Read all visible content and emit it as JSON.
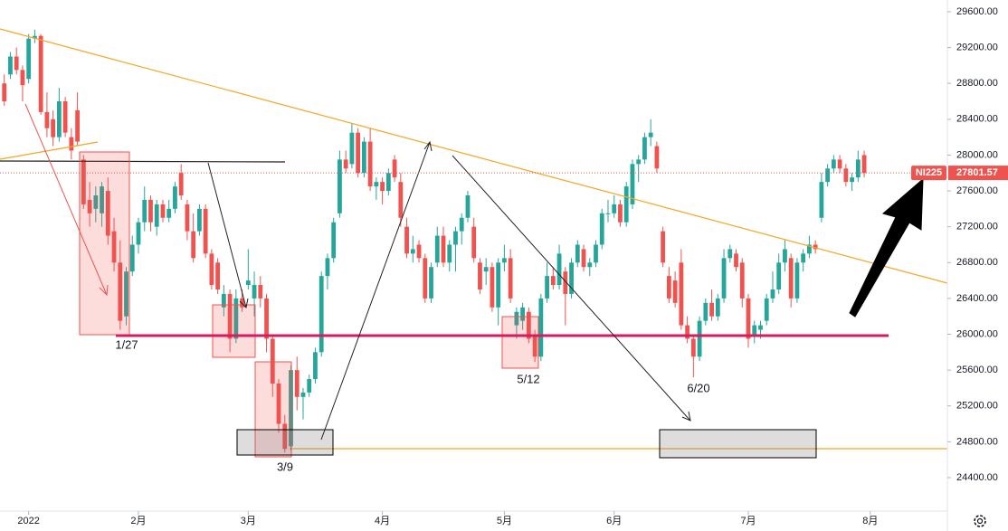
{
  "chart_data": {
    "type": "candlestick",
    "symbol": "NI225",
    "last_value": 27801.57,
    "up_color": "#26a69a",
    "down_color": "#ef5350",
    "xlim": [
      -0.7,
      154.64
    ],
    "ylim": [
      24026,
      29731
    ],
    "xticks": [
      {
        "value": 4,
        "label": "2022"
      },
      {
        "value": 22,
        "label": "2月"
      },
      {
        "value": 40,
        "label": "3月"
      },
      {
        "value": 62,
        "label": "4月"
      },
      {
        "value": 82,
        "label": "5月"
      },
      {
        "value": 100,
        "label": "6月"
      },
      {
        "value": 122,
        "label": "7月"
      },
      {
        "value": 142,
        "label": "8月"
      }
    ],
    "yticks": [
      {
        "value": 24400,
        "label": "24400.00"
      },
      {
        "value": 24800,
        "label": "24800.00"
      },
      {
        "value": 25200,
        "label": "25200.00"
      },
      {
        "value": 25600,
        "label": "25600.00"
      },
      {
        "value": 26000,
        "label": "26000.00"
      },
      {
        "value": 26400,
        "label": "26400.00"
      },
      {
        "value": 26800,
        "label": "26800.00"
      },
      {
        "value": 27200,
        "label": "27200.00"
      },
      {
        "value": 27600,
        "label": "27600.00"
      },
      {
        "value": 28000,
        "label": "28000.00"
      },
      {
        "value": 28400,
        "label": "28400.00"
      },
      {
        "value": 28800,
        "label": "28800.00"
      },
      {
        "value": 29200,
        "label": "29200.00"
      },
      {
        "value": 29600,
        "label": "29600.00"
      }
    ],
    "annotations": [
      "1/27",
      "3/9",
      "5/12",
      "6/20"
    ],
    "open": [
      28800,
      28900,
      29100,
      28950,
      28850,
      29300,
      29330,
      28480,
      28400,
      28200,
      28600,
      28200,
      28500,
      27950,
      27500,
      27400,
      27350,
      27600,
      27150,
      26800,
      26200,
      26700,
      27000,
      27250,
      27500,
      27200,
      27450,
      27300,
      27400,
      27800,
      27450,
      27150,
      27150,
      27400,
      26900,
      26800,
      26300,
      26450,
      25950,
      26400,
      26550,
      26400,
      26550,
      26400,
      25950,
      25450,
      25000,
      24750,
      25600,
      25300,
      25350,
      25500,
      25800,
      26650,
      26850,
      27350,
      27950,
      27900,
      28250,
      27800,
      28150,
      27650,
      27700,
      27600,
      27950,
      27700,
      27200,
      26900,
      27000,
      26850,
      26400,
      26800,
      27100,
      26800,
      27000,
      27150,
      27300,
      27200,
      26800,
      26700,
      26750,
      26300,
      26800,
      26850,
      26100,
      26150,
      26250,
      26000,
      25750,
      26400,
      26650,
      26550,
      26700,
      26450,
      26800,
      26950,
      26750,
      26800,
      27000,
      27350,
      27350,
      27450,
      27250,
      27450,
      27900,
      27950,
      28200,
      28100,
      27150,
      26650,
      26600,
      26800,
      26100,
      25950,
      25750,
      26150,
      26350,
      26200,
      26400,
      26850,
      26900,
      26800,
      26400,
      26000,
      26050,
      26150,
      26400,
      26500,
      26800,
      26850,
      26400,
      26800,
      26900,
      27000,
      27300,
      27700,
      27850,
      27950,
      27850,
      27700,
      27750,
      28000
    ],
    "high": [
      28900,
      29150,
      29200,
      29000,
      29350,
      29400,
      29350,
      28700,
      28500,
      28750,
      28650,
      28300,
      28700,
      28000,
      27700,
      27650,
      27700,
      27750,
      27300,
      27050,
      26750,
      27100,
      27300,
      27650,
      27550,
      27500,
      27500,
      27500,
      27700,
      27900,
      27500,
      27350,
      27450,
      27450,
      26950,
      26850,
      26550,
      26500,
      26500,
      26500,
      26950,
      26700,
      26650,
      26450,
      26000,
      25500,
      25100,
      25650,
      25750,
      25400,
      25550,
      25850,
      26700,
      26900,
      27300,
      28050,
      28050,
      28350,
      28300,
      28200,
      28300,
      27750,
      27750,
      27850,
      28000,
      27800,
      27300,
      27100,
      27050,
      26900,
      26800,
      27200,
      27200,
      27050,
      27200,
      27350,
      27600,
      27300,
      26850,
      26850,
      26800,
      26850,
      27000,
      26950,
      26300,
      26350,
      26300,
      26050,
      26450,
      26800,
      26750,
      27000,
      26750,
      26850,
      27050,
      27000,
      26850,
      27050,
      27400,
      27500,
      27550,
      27500,
      27700,
      27950,
      28000,
      28250,
      28400,
      28150,
      27200,
      26750,
      26700,
      26950,
      26200,
      26000,
      26200,
      26400,
      26500,
      26450,
      26950,
      27000,
      26950,
      26850,
      26450,
      26150,
      26150,
      26450,
      26700,
      26900,
      27050,
      26900,
      26850,
      26950,
      27100,
      27050,
      27800,
      27900,
      28000,
      28000,
      27900,
      27800,
      28050,
      28050
    ],
    "low": [
      28550,
      28850,
      28900,
      28600,
      28800,
      29250,
      28450,
      28200,
      28100,
      28150,
      28200,
      27950,
      28100,
      27400,
      27200,
      27250,
      27200,
      27000,
      26700,
      26050,
      26100,
      26650,
      26900,
      27150,
      27150,
      27100,
      27250,
      27250,
      27350,
      27500,
      27050,
      26800,
      27100,
      26850,
      26500,
      26450,
      26200,
      25800,
      25900,
      26250,
      26500,
      26200,
      26300,
      25800,
      25300,
      24900,
      24680,
      24700,
      25150,
      25050,
      25300,
      25450,
      25750,
      26500,
      26800,
      27300,
      27800,
      27850,
      27750,
      27750,
      27600,
      27500,
      27450,
      27550,
      27700,
      27200,
      26850,
      26800,
      26800,
      26350,
      26350,
      26750,
      26750,
      26700,
      26700,
      27000,
      27250,
      26800,
      26450,
      26550,
      26250,
      26100,
      26700,
      26350,
      25950,
      26050,
      25900,
      25690,
      25700,
      26350,
      26500,
      26500,
      26100,
      26400,
      26750,
      26700,
      26650,
      26750,
      26950,
      27250,
      27300,
      27200,
      27200,
      27400,
      27700,
      27900,
      28100,
      27800,
      26750,
      26350,
      26300,
      26050,
      25900,
      25520,
      25700,
      26100,
      26150,
      26150,
      26350,
      26800,
      26700,
      26300,
      25850,
      25900,
      25950,
      26100,
      26350,
      26450,
      26700,
      26300,
      26350,
      26700,
      26850,
      26900,
      27250,
      27650,
      27800,
      27800,
      27650,
      27600,
      27700,
      27750
    ],
    "close": [
      28600,
      29100,
      28950,
      28780,
      29300,
      29330,
      28480,
      28300,
      28200,
      28600,
      28250,
      28050,
      28150,
      27450,
      27350,
      27550,
      27650,
      27100,
      26800,
      26150,
      26700,
      27000,
      27250,
      27500,
      27250,
      27450,
      27300,
      27400,
      27650,
      27550,
      27150,
      26850,
      27400,
      26900,
      26550,
      26500,
      26450,
      25950,
      26400,
      26300,
      26600,
      26550,
      26400,
      25950,
      25450,
      25000,
      24720,
      25600,
      25300,
      25350,
      25500,
      25800,
      26650,
      26850,
      27250,
      27950,
      27850,
      28250,
      27800,
      28150,
      27650,
      27700,
      27600,
      27800,
      27750,
      27300,
      26900,
      26950,
      26850,
      26400,
      26750,
      27100,
      26800,
      27000,
      27150,
      27300,
      27550,
      26850,
      26500,
      26750,
      26300,
      26800,
      26850,
      26400,
      26250,
      26300,
      25950,
      25750,
      26400,
      26650,
      26550,
      26900,
      26450,
      26800,
      27000,
      26750,
      26800,
      27000,
      27350,
      27350,
      27450,
      27250,
      27650,
      27900,
      27950,
      28200,
      28250,
      27850,
      26800,
      26400,
      26350,
      26100,
      25950,
      25750,
      26150,
      26350,
      26200,
      26400,
      26850,
      26950,
      26750,
      26400,
      25950,
      26100,
      26100,
      26400,
      26500,
      26800,
      26950,
      26400,
      26800,
      26900,
      27000,
      26950,
      27700,
      27850,
      27950,
      27850,
      27700,
      27750,
      27950,
      27800
    ]
  }
}
